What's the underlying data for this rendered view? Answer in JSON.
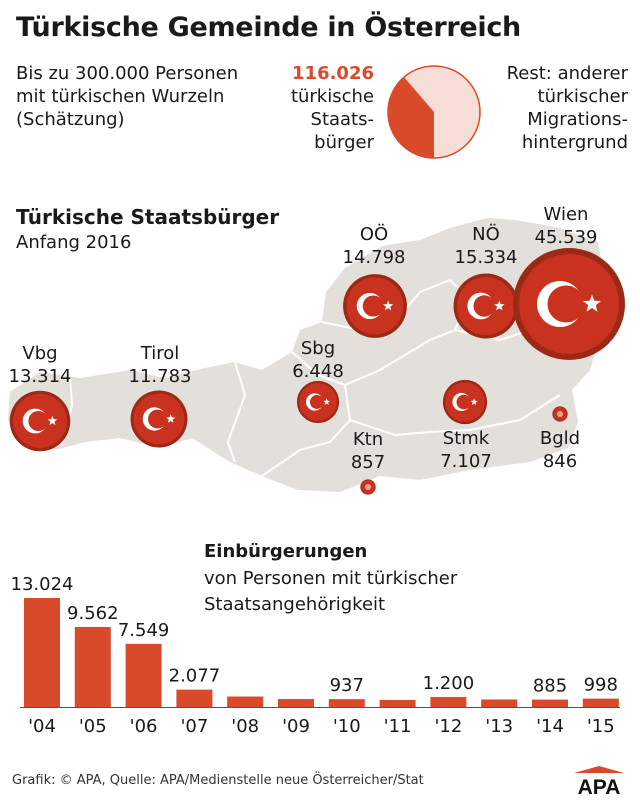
{
  "header": {
    "title": "Türkische Gemeinde in Österreich",
    "intro_left": [
      "Bis zu 300.000 Personen",
      "mit türkischen Wurzeln",
      "(Schätzung)"
    ],
    "intro_mid_number": "116.026",
    "intro_mid_text": [
      "türkische",
      "Staats-",
      "bürger"
    ],
    "intro_right": [
      "Rest: anderer",
      "türkischer",
      "Migrations-",
      "hintergrund"
    ]
  },
  "pie": {
    "total": 300000,
    "highlight": 116026,
    "highlight_color": "#d94a2b",
    "rest_color": "#f6ddd6"
  },
  "map": {
    "title": "Türkische Staatsbürger",
    "subtitle": "Anfang 2016",
    "land_color": "#e3e0dc",
    "flag_color": "#c8321e",
    "regions": [
      {
        "name": "Vbg",
        "value": "13.314",
        "count": 13314
      },
      {
        "name": "Tirol",
        "value": "11.783",
        "count": 11783
      },
      {
        "name": "Sbg",
        "value": "6.448",
        "count": 6448
      },
      {
        "name": "OÖ",
        "value": "14.798",
        "count": 14798
      },
      {
        "name": "NÖ",
        "value": "15.334",
        "count": 15334
      },
      {
        "name": "Wien",
        "value": "45.539",
        "count": 45539
      },
      {
        "name": "Ktn",
        "value": "857",
        "count": 857
      },
      {
        "name": "Stmk",
        "value": "7.107",
        "count": 7107
      },
      {
        "name": "Bgld",
        "value": "846",
        "count": 846
      }
    ]
  },
  "chart_data": {
    "type": "bar",
    "title": "Einbürgerungen",
    "subtitle": [
      "von Personen mit türkischer",
      "Staatsangehörigkeit"
    ],
    "categories": [
      "'04",
      "'05",
      "'06",
      "'07",
      "'08",
      "'09",
      "'10",
      "'11",
      "'12",
      "'13",
      "'14",
      "'15"
    ],
    "values": [
      13024,
      9562,
      7549,
      2077,
      1250,
      950,
      937,
      850,
      1200,
      900,
      885,
      998
    ],
    "labels": [
      "13.024",
      "9.562",
      "7.549",
      "2.077",
      "",
      "",
      "937",
      "",
      "1.200",
      "",
      "885",
      "998"
    ],
    "bar_color": "#d94a2b",
    "ylim": [
      0,
      13024
    ],
    "grid": false
  },
  "footer": {
    "source": "Grafik: © APA, Quelle: APA/Medienstelle neue Österreicher/Stat",
    "logo": "APA"
  }
}
